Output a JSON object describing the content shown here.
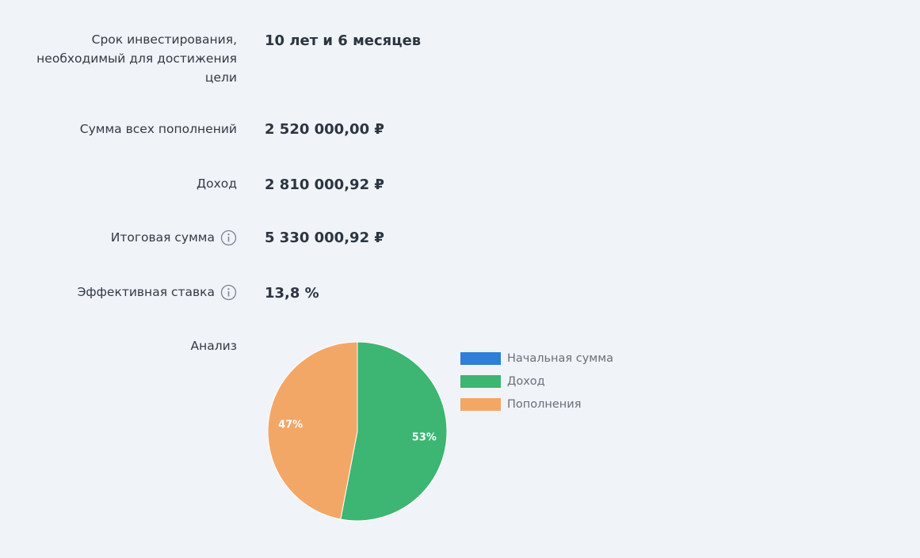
{
  "results": [
    {
      "label": "Срок инвестирования, необходимый для достижения цели",
      "value": "10 лет и 6 месяцев"
    },
    {
      "label": "Сумма всех пополнений",
      "value": "2 520 000,00 ₽"
    },
    {
      "label": "Доход",
      "value": "2 810 000,92 ₽"
    },
    {
      "label": "Итоговая сумма",
      "value": "5 330 000,92 ₽"
    },
    {
      "label": "Эффективная ставка",
      "value": "13,8 %"
    }
  ],
  "analysis_label": "Анализ",
  "chart_data": {
    "type": "pie",
    "categories": [
      "Начальная сумма",
      "Доход",
      "Пополнения"
    ],
    "values": [
      0,
      53,
      47
    ],
    "value_labels": [
      null,
      "53%",
      "47%"
    ],
    "colors": [
      "#2f7ed8",
      "#3db573",
      "#f3a766"
    ],
    "legend": "right"
  }
}
